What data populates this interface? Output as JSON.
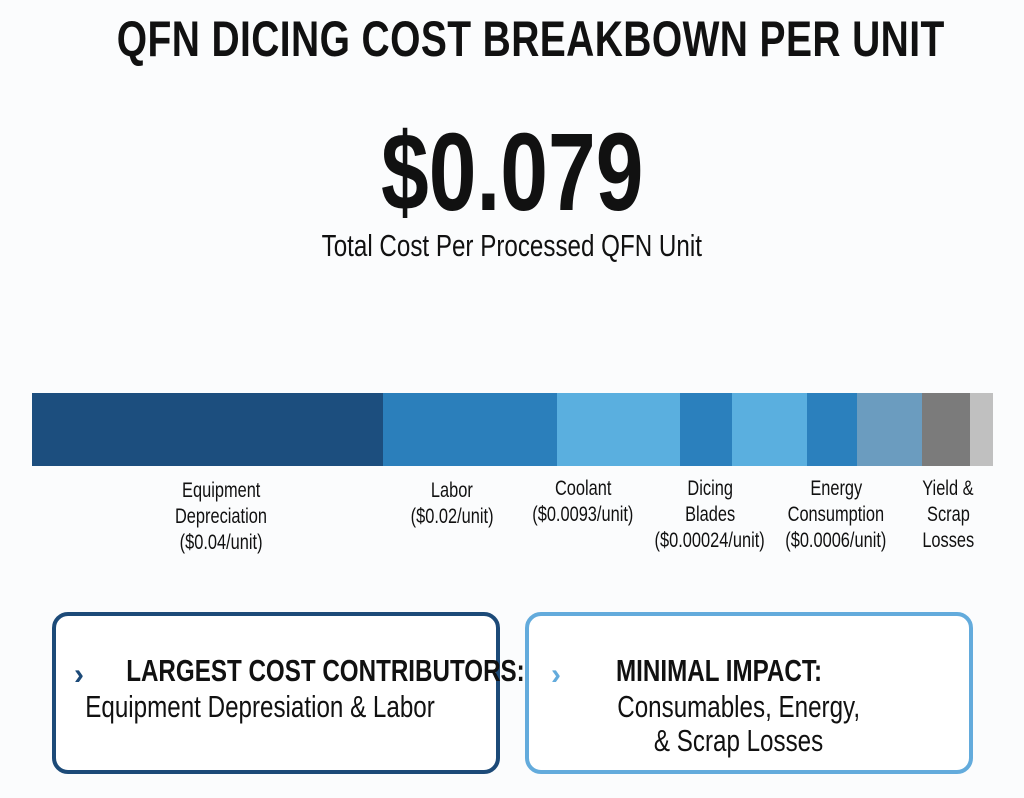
{
  "title": "QFN DICING COST BREAKBOWN PER UNIT",
  "total": "$0.079",
  "subtitle": "Total Cost Per Processed QFN Unit",
  "chart_data": {
    "type": "bar",
    "orientation": "horizontal-stacked",
    "title": "QFN DICING COST BREAKBOWN PER UNIT",
    "segments": [
      {
        "name": "Equipment Depreciation",
        "share": 36.5,
        "color": "#1c4e7e"
      },
      {
        "name": "Labor",
        "share": 18.1,
        "color": "#2b7fbb"
      },
      {
        "name": "Coolant",
        "share": 12.8,
        "color": "#5aafdf"
      },
      {
        "name": "Dicing Blades (a)",
        "share": 5.4,
        "color": "#2b80bd"
      },
      {
        "name": "Dicing Blades (b)",
        "share": 7.8,
        "color": "#5aafdf"
      },
      {
        "name": "Energy Consumption",
        "share": 5.2,
        "color": "#2b80bd"
      },
      {
        "name": "Energy Consumption (b)",
        "share": 6.8,
        "color": "#6b9cbf"
      },
      {
        "name": "Yield & Scrap Losses",
        "share": 5.0,
        "color": "#7b7b7b"
      },
      {
        "name": "Yield & Scrap Losses (b)",
        "share": 2.4,
        "color": "#c0c0c0"
      }
    ],
    "labels": [
      {
        "lines": [
          "Equipment",
          "Depreciation",
          "($0.04/unit)"
        ]
      },
      {
        "lines": [
          "Labor",
          "($0.02/unit)"
        ]
      },
      {
        "lines": [
          "Coolant",
          "($0.0093/unit)"
        ]
      },
      {
        "lines": [
          "Dicing",
          "Blades",
          "($0.00024/unit)"
        ]
      },
      {
        "lines": [
          "Energy",
          "Consumption",
          "($0.0006/unit)"
        ]
      },
      {
        "lines": [
          "Yield &",
          "Scrap",
          "Losses"
        ]
      }
    ]
  },
  "boxes": [
    {
      "heading": "LARGEST COST CONTRIBUTORS:",
      "lines": [
        "Equipment Depresiation & Labor"
      ],
      "chevron": "›",
      "color": "#1c4a78"
    },
    {
      "heading": "MINIMAL IMPACT:",
      "lines": [
        "Consumables, Energy,",
        "& Scrap Losses"
      ],
      "chevron": "›",
      "color": "#63abdc"
    }
  ]
}
